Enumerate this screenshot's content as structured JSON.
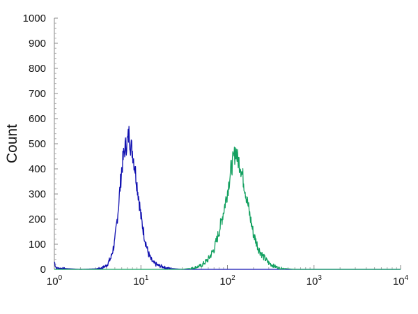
{
  "chart_data": {
    "type": "line",
    "xscale": "log",
    "xlim": [
      1,
      10000
    ],
    "ylim": [
      0,
      1000
    ],
    "ylabel": "Count",
    "xlabel": "",
    "x_ticks": [
      {
        "base": "10",
        "exp": "0",
        "value": 1
      },
      {
        "base": "10",
        "exp": "1",
        "value": 10
      },
      {
        "base": "10",
        "exp": "2",
        "value": 100
      },
      {
        "base": "10",
        "exp": "3",
        "value": 1000
      },
      {
        "base": "10",
        "exp": "4",
        "value": 10000
      }
    ],
    "y_ticks": [
      "0",
      "100",
      "200",
      "300",
      "400",
      "500",
      "600",
      "700",
      "800",
      "900",
      "1000"
    ],
    "grid": false,
    "series": [
      {
        "color": "#1010b0",
        "points": [
          [
            1,
            30
          ],
          [
            1.05,
            5
          ],
          [
            2,
            0
          ],
          [
            3,
            2
          ],
          [
            3.5,
            5
          ],
          [
            4,
            15
          ],
          [
            4.5,
            45
          ],
          [
            5,
            110
          ],
          [
            5.5,
            250
          ],
          [
            6,
            400
          ],
          [
            6.5,
            480
          ],
          [
            7,
            510
          ],
          [
            7.3,
            540
          ],
          [
            7.6,
            495
          ],
          [
            8,
            470
          ],
          [
            8.5,
            410
          ],
          [
            9,
            340
          ],
          [
            9.5,
            280
          ],
          [
            10,
            210
          ],
          [
            11,
            130
          ],
          [
            12,
            70
          ],
          [
            13,
            40
          ],
          [
            14,
            25
          ],
          [
            16,
            15
          ],
          [
            18,
            10
          ],
          [
            20,
            5
          ],
          [
            25,
            2
          ],
          [
            30,
            0
          ],
          [
            10000,
            0
          ]
        ]
      },
      {
        "color": "#13a060",
        "points": [
          [
            1,
            0
          ],
          [
            30,
            0
          ],
          [
            40,
            5
          ],
          [
            50,
            15
          ],
          [
            60,
            40
          ],
          [
            70,
            80
          ],
          [
            80,
            150
          ],
          [
            90,
            230
          ],
          [
            100,
            310
          ],
          [
            110,
            400
          ],
          [
            120,
            450
          ],
          [
            125,
            480
          ],
          [
            130,
            440
          ],
          [
            140,
            420
          ],
          [
            150,
            370
          ],
          [
            160,
            320
          ],
          [
            180,
            220
          ],
          [
            200,
            140
          ],
          [
            230,
            80
          ],
          [
            260,
            50
          ],
          [
            300,
            25
          ],
          [
            350,
            12
          ],
          [
            400,
            5
          ],
          [
            500,
            2
          ],
          [
            600,
            0
          ],
          [
            10000,
            0
          ]
        ]
      }
    ]
  }
}
